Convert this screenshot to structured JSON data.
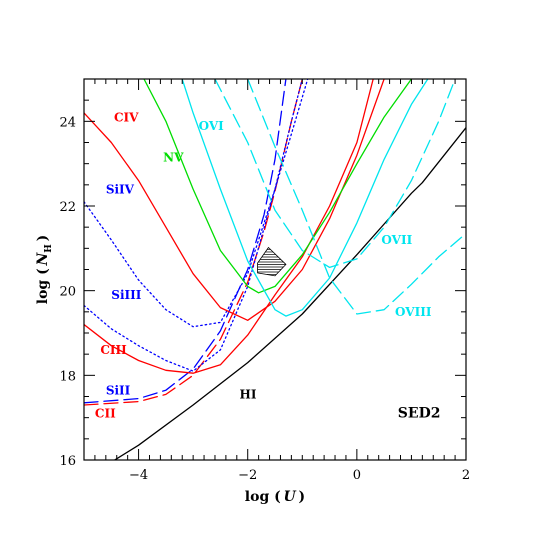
{
  "chart_data": {
    "type": "line",
    "title": "",
    "xlabel": "log (U)",
    "ylabel": "log (N_H)",
    "xlim": [
      -5,
      2
    ],
    "ylim": [
      16,
      25
    ],
    "x_ticks": [
      -4,
      -2,
      0,
      2
    ],
    "y_ticks": [
      16,
      18,
      20,
      22,
      24
    ],
    "annotation": "SED2",
    "shaded_region": {
      "points": [
        [
          -1.62,
          21.02
        ],
        [
          -1.3,
          20.62
        ],
        [
          -1.5,
          20.35
        ],
        [
          -1.82,
          20.42
        ],
        [
          -1.82,
          20.65
        ]
      ],
      "hatch": "horizontal"
    },
    "series": [
      {
        "label": "HI",
        "color": "#000000",
        "style": "solid",
        "label_x": -2.15,
        "label_y": 17.45,
        "x": [
          -4.5,
          -4.0,
          -3.0,
          -2.0,
          -1.0,
          0.0,
          1.0,
          1.2,
          2.0
        ],
        "y": [
          15.95,
          16.35,
          17.3,
          18.3,
          19.45,
          20.85,
          22.3,
          22.55,
          23.85
        ]
      },
      {
        "label": "CII",
        "color": "#ff0000",
        "style": "dashed",
        "label_x": -4.8,
        "label_y": 17.0,
        "x": [
          -5.0,
          -4.0,
          -3.5,
          -3.0,
          -2.5,
          -2.0,
          -1.7,
          -1.5,
          -1.2,
          -1.0
        ],
        "y": [
          17.3,
          17.38,
          17.55,
          18.0,
          18.85,
          20.2,
          21.4,
          22.35,
          24.0,
          25.0
        ]
      },
      {
        "label": "SiII",
        "color": "#0000ff",
        "style": "dashed",
        "label_x": -4.6,
        "label_y": 17.55,
        "x": [
          -5.0,
          -4.0,
          -3.5,
          -3.0,
          -2.5,
          -2.0,
          -1.7,
          -1.5,
          -1.3
        ],
        "y": [
          17.35,
          17.45,
          17.65,
          18.15,
          19.05,
          20.5,
          21.8,
          23.1,
          25.0
        ]
      },
      {
        "label": "CIII",
        "color": "#ff0000",
        "style": "solid",
        "label_x": -4.7,
        "label_y": 18.5,
        "x": [
          -5.0,
          -4.5,
          -4.0,
          -3.5,
          -3.0,
          -2.5,
          -2.0,
          -1.5,
          -1.0,
          -0.5,
          0.0,
          0.3
        ],
        "y": [
          19.2,
          18.7,
          18.35,
          18.12,
          18.05,
          18.25,
          18.95,
          19.9,
          20.8,
          22.0,
          23.5,
          25.0
        ]
      },
      {
        "label": "SiIII",
        "color": "#0000ff",
        "style": "dotted",
        "label_x": -4.5,
        "label_y": 19.8,
        "x": [
          -5.0,
          -4.5,
          -4.0,
          -3.5,
          -3.0,
          -2.5,
          -2.0,
          -1.5,
          -1.2,
          -1.0
        ],
        "y": [
          19.65,
          19.1,
          18.7,
          18.35,
          18.1,
          18.6,
          20.1,
          22.4,
          24.0,
          25.0
        ]
      },
      {
        "label": "SiIV",
        "color": "#0000ff",
        "style": "dotted",
        "label_x": -4.6,
        "label_y": 22.3,
        "x": [
          -5.0,
          -4.5,
          -4.0,
          -3.5,
          -3.0,
          -2.5,
          -2.0,
          -1.5,
          -1.2,
          -0.9
        ],
        "y": [
          22.1,
          21.2,
          20.25,
          19.55,
          19.15,
          19.25,
          20.4,
          22.4,
          23.7,
          25.0
        ]
      },
      {
        "label": "CIV",
        "color": "#ff0000",
        "style": "solid",
        "label_x": -4.45,
        "label_y": 24.0,
        "x": [
          -5.0,
          -4.5,
          -4.0,
          -3.5,
          -3.0,
          -2.5,
          -2.0,
          -1.5,
          -1.0,
          -0.5,
          0.0,
          0.5
        ],
        "y": [
          24.2,
          23.5,
          22.6,
          21.5,
          20.4,
          19.6,
          19.3,
          19.75,
          20.5,
          21.7,
          23.2,
          25.0
        ]
      },
      {
        "label": "NV",
        "color": "#00dd00",
        "style": "solid",
        "label_x": -3.55,
        "label_y": 23.05,
        "x": [
          -3.9,
          -3.5,
          -3.0,
          -2.5,
          -2.0,
          -1.8,
          -1.5,
          -1.0,
          -0.5,
          0.0,
          0.5,
          1.0
        ],
        "y": [
          25.0,
          24.0,
          22.4,
          20.95,
          20.1,
          19.95,
          20.1,
          20.85,
          21.85,
          23.0,
          24.1,
          25.0
        ]
      },
      {
        "label": "OVI",
        "color": "#00e5ee",
        "style": "solid",
        "label_x": -2.9,
        "label_y": 23.8,
        "x": [
          -3.2,
          -3.0,
          -2.5,
          -2.0,
          -1.5,
          -1.3,
          -1.0,
          -0.5,
          0.0,
          0.5,
          1.0,
          1.3
        ],
        "y": [
          25.0,
          24.2,
          22.4,
          20.7,
          19.55,
          19.4,
          19.55,
          20.3,
          21.6,
          23.1,
          24.4,
          25.0
        ]
      },
      {
        "label": "OVII",
        "color": "#00e5ee",
        "style": "dashed",
        "label_x": 0.45,
        "label_y": 21.1,
        "x": [
          -2.6,
          -2.0,
          -1.5,
          -1.0,
          -0.5,
          0.0,
          0.5,
          1.0,
          1.5,
          1.8
        ],
        "y": [
          25.0,
          23.5,
          21.9,
          20.95,
          20.55,
          20.75,
          21.5,
          22.6,
          24.0,
          25.0
        ]
      },
      {
        "label": "OVIII",
        "color": "#00e5ee",
        "style": "dashed",
        "label_x": 0.7,
        "label_y": 19.4,
        "x": [
          -2.0,
          -1.5,
          -1.0,
          -0.5,
          0.0,
          0.5,
          1.0,
          1.5,
          2.0
        ],
        "y": [
          25.0,
          23.4,
          21.9,
          20.3,
          19.45,
          19.55,
          20.15,
          20.8,
          21.35
        ]
      }
    ]
  }
}
